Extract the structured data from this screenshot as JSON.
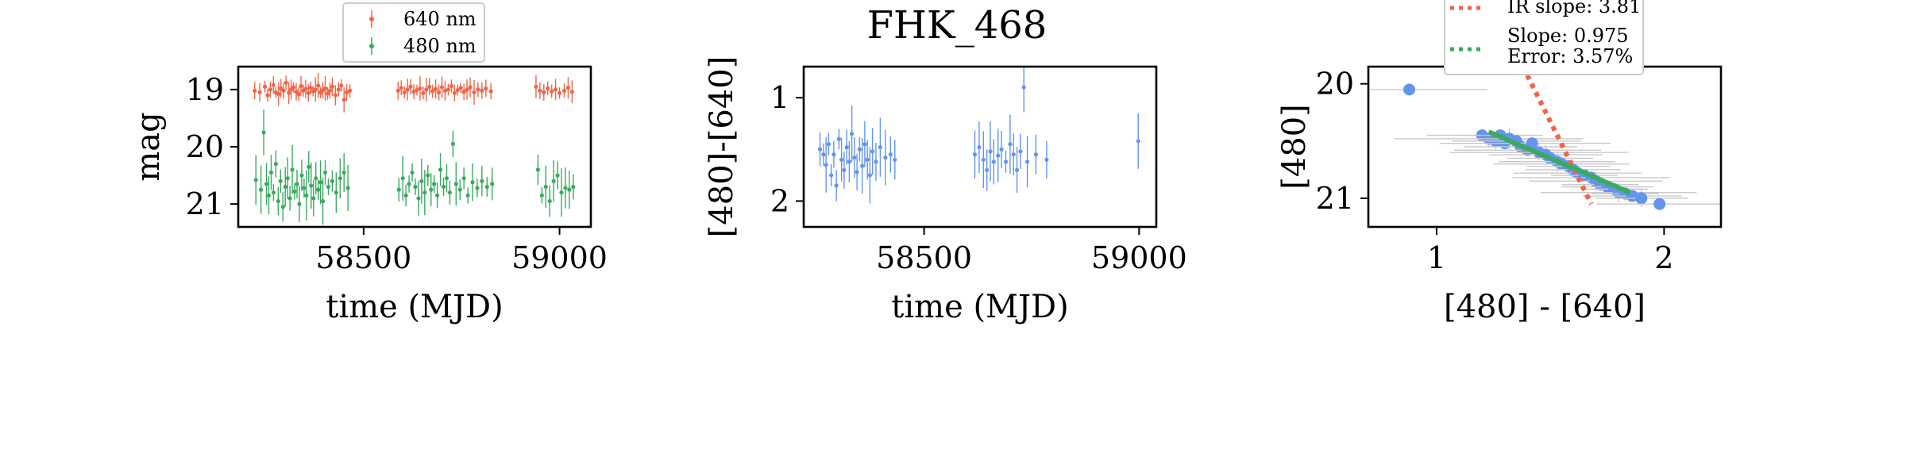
{
  "figure_title": "FHK_468",
  "colors": {
    "red": "#f26449",
    "green": "#3aaa5f",
    "blue": "#6495ed",
    "grey_err": "#c9c9c9"
  },
  "chart_data": [
    {
      "type": "scatter",
      "panel": "light-curve",
      "title": "",
      "xlabel": "time (MJD)",
      "ylabel": "mag",
      "xlim": [
        58180,
        59080
      ],
      "ylim": [
        21.4,
        18.6
      ],
      "y_inverted": true,
      "xticks": [
        58500,
        59000
      ],
      "xtick_labels": [
        "58500",
        "59000"
      ],
      "yticks": [
        19,
        20,
        21
      ],
      "ytick_labels": [
        "19",
        "20",
        "21"
      ],
      "legend": {
        "placement": "top-center above axes",
        "entries": [
          "640 nm",
          "480 nm"
        ]
      },
      "series": [
        {
          "name": "640 nm",
          "color": "#f26449",
          "points": [
            [
              58222,
              19.02
            ],
            [
              58235,
              19.05
            ],
            [
              58248,
              18.95
            ],
            [
              58255,
              19.1
            ],
            [
              58262,
              19.0
            ],
            [
              58270,
              18.92
            ],
            [
              58276,
              19.05
            ],
            [
              58283,
              19.08
            ],
            [
              58289,
              18.98
            ],
            [
              58296,
              19.02
            ],
            [
              58302,
              18.88
            ],
            [
              58309,
              19.06
            ],
            [
              58315,
              19.0
            ],
            [
              58321,
              18.96
            ],
            [
              58328,
              19.04
            ],
            [
              58334,
              19.08
            ],
            [
              58340,
              18.94
            ],
            [
              58346,
              19.02
            ],
            [
              58352,
              18.99
            ],
            [
              58359,
              19.06
            ],
            [
              58365,
              18.97
            ],
            [
              58371,
              19.03
            ],
            [
              58377,
              19.0
            ],
            [
              58384,
              18.93
            ],
            [
              58390,
              19.05
            ],
            [
              58396,
              19.01
            ],
            [
              58402,
              18.98
            ],
            [
              58408,
              19.07
            ],
            [
              58414,
              19.02
            ],
            [
              58420,
              18.95
            ],
            [
              58428,
              19.1
            ],
            [
              58436,
              19.0
            ],
            [
              58443,
              18.93
            ],
            [
              58450,
              19.18
            ],
            [
              58457,
              19.05
            ],
            [
              58465,
              19.02
            ],
            [
              58588,
              19.02
            ],
            [
              58596,
              18.97
            ],
            [
              58604,
              19.05
            ],
            [
              58612,
              19.0
            ],
            [
              58620,
              18.95
            ],
            [
              58628,
              19.04
            ],
            [
              58636,
              19.01
            ],
            [
              58644,
              18.98
            ],
            [
              58652,
              19.06
            ],
            [
              58660,
              19.0
            ],
            [
              58668,
              18.95
            ],
            [
              58676,
              19.03
            ],
            [
              58684,
              18.99
            ],
            [
              58692,
              19.05
            ],
            [
              58700,
              18.96
            ],
            [
              58708,
              19.02
            ],
            [
              58716,
              19.0
            ],
            [
              58724,
              18.94
            ],
            [
              58732,
              19.06
            ],
            [
              58740,
              19.01
            ],
            [
              58748,
              18.97
            ],
            [
              58756,
              19.04
            ],
            [
              58764,
              19.0
            ],
            [
              58772,
              18.96
            ],
            [
              58782,
              19.05
            ],
            [
              58792,
              19.0
            ],
            [
              58802,
              19.02
            ],
            [
              58812,
              18.98
            ],
            [
              58825,
              19.03
            ],
            [
              58940,
              18.95
            ],
            [
              58950,
              19.02
            ],
            [
              58960,
              19.05
            ],
            [
              58970,
              18.98
            ],
            [
              58980,
              19.03
            ],
            [
              58990,
              19.0
            ],
            [
              59000,
              19.06
            ],
            [
              59012,
              19.02
            ],
            [
              59022,
              18.97
            ],
            [
              59032,
              19.04
            ]
          ]
        },
        {
          "name": "480 nm",
          "color": "#3aaa5f",
          "points": [
            [
              58225,
              20.58
            ],
            [
              58238,
              20.75
            ],
            [
              58245,
              19.75
            ],
            [
              58252,
              20.65
            ],
            [
              58258,
              20.85
            ],
            [
              58264,
              20.45
            ],
            [
              58270,
              20.8
            ],
            [
              58276,
              20.3
            ],
            [
              58282,
              20.95
            ],
            [
              58288,
              20.6
            ],
            [
              58294,
              21.05
            ],
            [
              58300,
              20.7
            ],
            [
              58306,
              20.55
            ],
            [
              58312,
              20.9
            ],
            [
              58318,
              20.4
            ],
            [
              58324,
              20.78
            ],
            [
              58330,
              20.65
            ],
            [
              58336,
              21.0
            ],
            [
              58342,
              20.5
            ],
            [
              58348,
              20.72
            ],
            [
              58354,
              20.85
            ],
            [
              58360,
              20.35
            ],
            [
              58366,
              20.68
            ],
            [
              58372,
              20.9
            ],
            [
              58378,
              20.55
            ],
            [
              58384,
              20.75
            ],
            [
              58390,
              20.62
            ],
            [
              58396,
              20.95
            ],
            [
              58402,
              20.45
            ],
            [
              58410,
              20.7
            ],
            [
              58420,
              20.6
            ],
            [
              58430,
              20.8
            ],
            [
              58440,
              20.55
            ],
            [
              58450,
              20.45
            ],
            [
              58460,
              20.72
            ],
            [
              58590,
              20.75
            ],
            [
              58600,
              20.55
            ],
            [
              58608,
              20.85
            ],
            [
              58616,
              20.65
            ],
            [
              58624,
              20.45
            ],
            [
              58632,
              20.7
            ],
            [
              58640,
              20.9
            ],
            [
              58648,
              20.6
            ],
            [
              58656,
              20.8
            ],
            [
              58664,
              20.5
            ],
            [
              58672,
              20.75
            ],
            [
              58680,
              20.65
            ],
            [
              58688,
              20.85
            ],
            [
              58696,
              20.4
            ],
            [
              58704,
              20.7
            ],
            [
              58712,
              20.55
            ],
            [
              58720,
              20.8
            ],
            [
              58728,
              19.95
            ],
            [
              58736,
              20.65
            ],
            [
              58746,
              20.75
            ],
            [
              58756,
              20.55
            ],
            [
              58766,
              20.85
            ],
            [
              58778,
              20.62
            ],
            [
              58790,
              20.72
            ],
            [
              58802,
              20.6
            ],
            [
              58815,
              20.7
            ],
            [
              58828,
              20.65
            ],
            [
              58945,
              20.4
            ],
            [
              58955,
              20.85
            ],
            [
              58965,
              20.7
            ],
            [
              58975,
              20.95
            ],
            [
              58985,
              20.6
            ],
            [
              58995,
              20.5
            ],
            [
              59005,
              20.8
            ],
            [
              59015,
              20.72
            ],
            [
              59025,
              20.75
            ],
            [
              59035,
              20.7
            ]
          ]
        }
      ]
    },
    {
      "type": "scatter",
      "panel": "color-curve",
      "title": "",
      "xlabel": "time (MJD)",
      "ylabel": "[480]-[640]",
      "xlim": [
        58220,
        59040
      ],
      "ylim": [
        2.25,
        0.7
      ],
      "y_inverted": true,
      "xticks": [
        58500,
        59000
      ],
      "xtick_labels": [
        "58500",
        "59000"
      ],
      "yticks": [
        1,
        2
      ],
      "ytick_labels": [
        "1",
        "2"
      ],
      "series": [
        {
          "name": "",
          "color": "#6495ed",
          "points": [
            [
              58258,
              1.5
            ],
            [
              58266,
              1.55
            ],
            [
              58272,
              1.65
            ],
            [
              58278,
              1.45
            ],
            [
              58284,
              1.75
            ],
            [
              58290,
              1.55
            ],
            [
              58296,
              1.85
            ],
            [
              58302,
              1.4
            ],
            [
              58308,
              1.6
            ],
            [
              58314,
              1.7
            ],
            [
              58320,
              1.48
            ],
            [
              58326,
              1.62
            ],
            [
              58332,
              1.35
            ],
            [
              58338,
              1.58
            ],
            [
              58344,
              1.72
            ],
            [
              58350,
              1.5
            ],
            [
              58356,
              1.66
            ],
            [
              58362,
              1.45
            ],
            [
              58368,
              1.6
            ],
            [
              58374,
              1.75
            ],
            [
              58380,
              1.52
            ],
            [
              58388,
              1.62
            ],
            [
              58398,
              1.48
            ],
            [
              58410,
              1.58
            ],
            [
              58422,
              1.55
            ],
            [
              58432,
              1.6
            ],
            [
              58618,
              1.55
            ],
            [
              58628,
              1.48
            ],
            [
              58638,
              1.6
            ],
            [
              58646,
              1.7
            ],
            [
              58654,
              1.52
            ],
            [
              58662,
              1.62
            ],
            [
              58672,
              1.56
            ],
            [
              58680,
              1.5
            ],
            [
              58690,
              1.62
            ],
            [
              58700,
              1.45
            ],
            [
              58708,
              1.55
            ],
            [
              58716,
              1.7
            ],
            [
              58724,
              1.52
            ],
            [
              58732,
              0.9
            ],
            [
              58740,
              1.62
            ],
            [
              58760,
              1.55
            ],
            [
              58785,
              1.6
            ],
            [
              58998,
              1.42
            ]
          ]
        }
      ]
    },
    {
      "type": "scatter",
      "panel": "color-magnitude",
      "title": "",
      "xlabel": "[480] - [640]",
      "ylabel": "[480]",
      "xlim": [
        0.7,
        2.25
      ],
      "ylim": [
        21.25,
        19.85
      ],
      "y_inverted": true,
      "xticks": [
        1,
        2
      ],
      "xtick_labels": [
        "1",
        "2"
      ],
      "yticks": [
        20,
        21
      ],
      "ytick_labels": [
        "20",
        "21"
      ],
      "legend": {
        "placement": "top-right above axes",
        "entries": [
          "IR slope: 3.81",
          "Slope: 0.975\nError: 3.57%"
        ]
      },
      "series": [
        {
          "name": "",
          "color": "#6495ed",
          "points": [
            [
              0.88,
              20.05
            ],
            [
              1.2,
              20.45
            ],
            [
              1.23,
              20.48
            ],
            [
              1.26,
              20.5
            ],
            [
              1.28,
              20.45
            ],
            [
              1.3,
              20.52
            ],
            [
              1.32,
              20.48
            ],
            [
              1.35,
              20.5
            ],
            [
              1.37,
              20.55
            ],
            [
              1.4,
              20.58
            ],
            [
              1.42,
              20.52
            ],
            [
              1.45,
              20.6
            ],
            [
              1.48,
              20.62
            ],
            [
              1.5,
              20.65
            ],
            [
              1.53,
              20.68
            ],
            [
              1.55,
              20.7
            ],
            [
              1.58,
              20.72
            ],
            [
              1.6,
              20.75
            ],
            [
              1.62,
              20.78
            ],
            [
              1.65,
              20.8
            ],
            [
              1.68,
              20.82
            ],
            [
              1.7,
              20.85
            ],
            [
              1.72,
              20.88
            ],
            [
              1.75,
              20.9
            ],
            [
              1.78,
              20.92
            ],
            [
              1.8,
              20.95
            ],
            [
              1.83,
              20.96
            ],
            [
              1.86,
              20.98
            ],
            [
              1.9,
              21.0
            ],
            [
              1.98,
              21.05
            ]
          ]
        }
      ],
      "lines": [
        {
          "name": "IR slope: 3.81",
          "color": "#f26449",
          "style": "dotted",
          "x": [
            1.38,
            1.68
          ],
          "y": [
            19.85,
            21.05
          ]
        },
        {
          "name": "Slope: 0.975",
          "color": "#3aaa5f",
          "style": "solid",
          "x": [
            1.23,
            1.85
          ],
          "y": [
            20.42,
            20.95
          ]
        }
      ]
    }
  ]
}
